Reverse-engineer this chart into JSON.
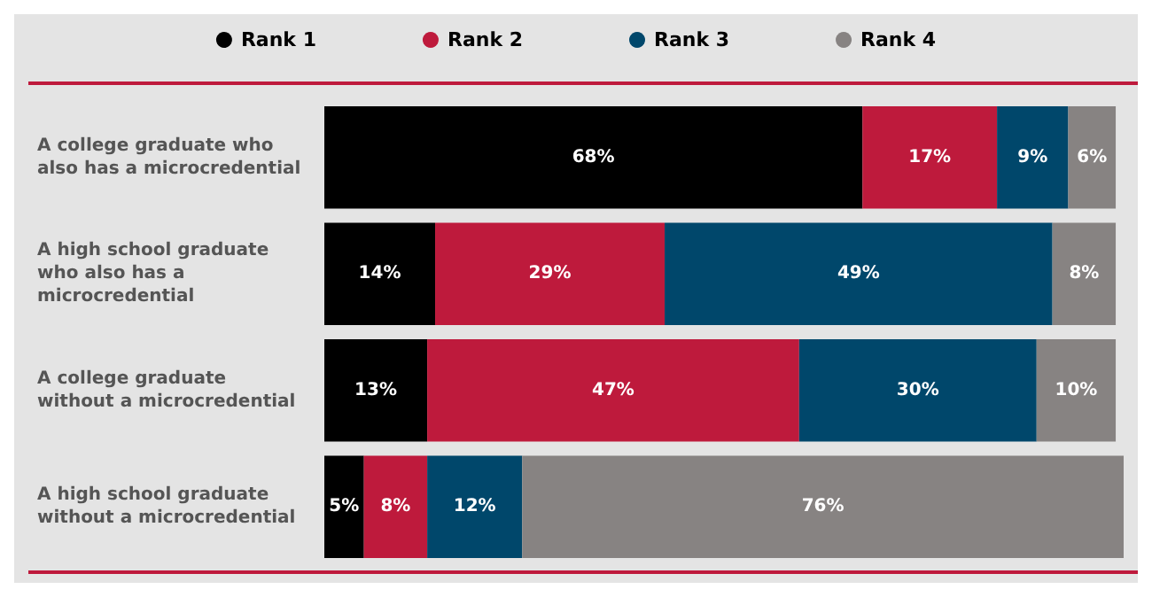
{
  "chart_data": {
    "type": "bar",
    "orientation": "horizontal",
    "stacked": true,
    "legend": "top",
    "tick_labels": "y",
    "categories": [
      "A college graduate who also has a microcredential",
      "A high school graduate who also has a microcredential",
      "A college graduate without a microcredential",
      "A high school graduate without a microcredential"
    ],
    "series": [
      {
        "name": "Rank 1",
        "color": "#000000",
        "values": [
          68,
          14,
          13,
          5
        ],
        "value_labels": [
          "68%",
          "14%",
          "13%",
          "5%"
        ]
      },
      {
        "name": "Rank 2",
        "color": "#be1a3c",
        "values": [
          17,
          29,
          47,
          8
        ],
        "value_labels": [
          "17%",
          "29%",
          "47%",
          "8%"
        ]
      },
      {
        "name": "Rank 3",
        "color": "#00476b",
        "values": [
          9,
          49,
          30,
          12
        ],
        "value_labels": [
          "9%",
          "49%",
          "30%",
          "12%"
        ]
      },
      {
        "name": "Rank 4",
        "color": "#878382",
        "values": [
          6,
          8,
          10,
          76
        ],
        "value_labels": [
          "6%",
          "8%",
          "10%",
          "76%"
        ]
      }
    ]
  }
}
